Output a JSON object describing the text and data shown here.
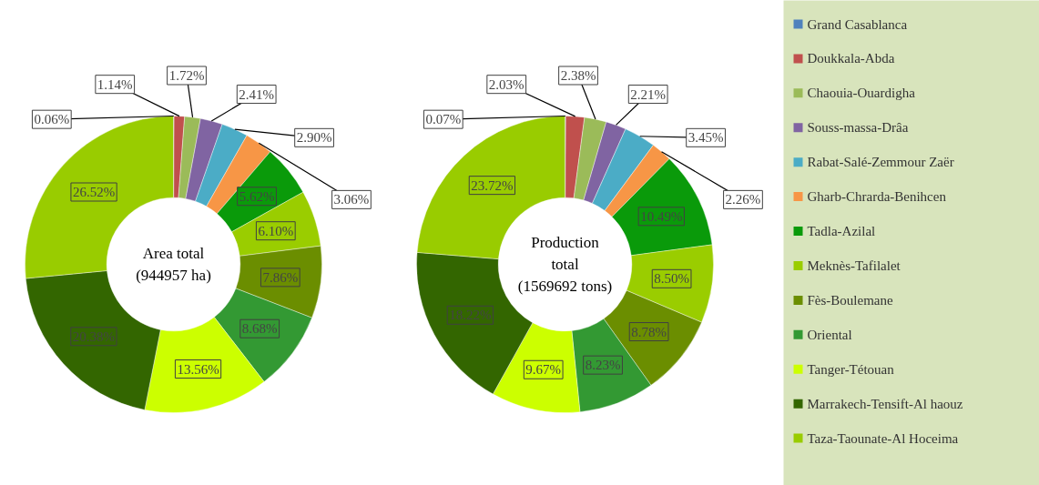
{
  "chart_data": [
    {
      "type": "donut",
      "annotations": [
        "Area total\n(944957 ha)"
      ],
      "legend": "right",
      "categories": [
        "Grand Casablanca",
        "Doukkala-Abda",
        "Chaouia-Ouardigha",
        "Souss-massa-Drâa",
        "Rabat-Salé-Zemmour Zaër",
        "Gharb-Chrarda-Benihcen",
        "Tadla-Azilal",
        "Meknès-Tafilalet",
        "Fès-Boulemane",
        "Oriental",
        "Tanger-Tétouan",
        "Marrakech-Tensift-Al haouz",
        "Taza-Taounate-Al Hoceima"
      ],
      "values": [
        0.06,
        1.14,
        1.72,
        2.41,
        2.9,
        3.06,
        5.62,
        6.1,
        7.86,
        8.68,
        13.56,
        20.38,
        26.52
      ],
      "value_labels": [
        "0.06%",
        "1.14%",
        "1.72%",
        "2.41%",
        "2.90%",
        "3.06%",
        "5.62%",
        "6.10%",
        "7.86%",
        "8.68%",
        "13.56%",
        "20.38%",
        "26.52%"
      ],
      "colors": [
        "#4f81bd",
        "#c0504d",
        "#9bbb59",
        "#8064a2",
        "#4bacc6",
        "#f79646",
        "#0a9a0a",
        "#9acd00",
        "#6b8e00",
        "#339933",
        "#ccff00",
        "#336600",
        "#99cc00"
      ]
    },
    {
      "type": "donut",
      "annotations": [
        "Production\ntotal\n(1569692 tons)"
      ],
      "values": [
        0.07,
        2.03,
        2.38,
        2.21,
        3.45,
        2.26,
        10.49,
        8.5,
        8.78,
        8.23,
        9.67,
        18.22,
        23.72
      ],
      "value_labels": [
        "0.07%",
        "2.03%",
        "2.38%",
        "2.21%",
        "3.45%",
        "2.26%",
        "10.49%",
        "8.50%",
        "8.78%",
        "8.23%",
        "9.67%",
        "18.22%",
        "23.72%"
      ],
      "colors": [
        "#4f81bd",
        "#c0504d",
        "#9bbb59",
        "#8064a2",
        "#4bacc6",
        "#f79646",
        "#0a9a0a",
        "#9acd00",
        "#6b8e00",
        "#339933",
        "#ccff00",
        "#336600",
        "#99cc00"
      ]
    }
  ]
}
